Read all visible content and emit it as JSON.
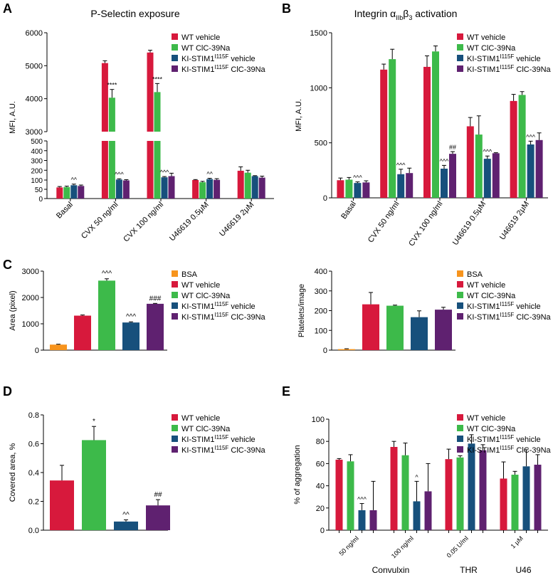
{
  "palette": {
    "bsa": "#f7941d",
    "wt_vehicle": "#d7193c",
    "wt_clc": "#3dba4a",
    "ki_vehicle": "#17507c",
    "ki_clc": "#5f2170"
  },
  "legend_labels": {
    "bsa": "BSA",
    "wt_vehicle": "WT vehicle",
    "wt_clc": "WT ClC-39Na",
    "ki_vehicle_pre": "KI-STIM1",
    "ki_vehicle_sup": "I115F",
    "ki_vehicle_post": " vehicle",
    "ki_clc_pre": "KI-STIM1",
    "ki_clc_sup": "I115F",
    "ki_clc_post": " ClC-39Na"
  },
  "panel_letters": {
    "a": "A",
    "b": "B",
    "c": "C",
    "d": "D",
    "e": "E"
  },
  "chart_data": [
    {
      "panel": "A",
      "type": "bar",
      "title": "P-Selectin exposure",
      "ylabel": "MFI, A.U.",
      "axis_break": true,
      "ylim_lower": [
        0,
        500
      ],
      "ylim_upper": [
        3000,
        6000
      ],
      "yticks_lower": [
        0,
        50,
        100,
        200,
        300,
        400,
        500
      ],
      "yticks_upper": [
        3000,
        4000,
        5000,
        6000
      ],
      "categories": [
        "Basal",
        "CVX 50 ng/ml",
        "CVX 100 ng/ml",
        "U46619 0.5μM",
        "U46619 2μM"
      ],
      "series": [
        {
          "name": "WT vehicle",
          "key": "wt_vehicle",
          "values": [
            60,
            5080,
            5400,
            100,
            195
          ],
          "errors": [
            5,
            70,
            70,
            5,
            40
          ]
        },
        {
          "name": "WT ClC-39Na",
          "key": "wt_clc",
          "values": [
            62,
            4030,
            4200,
            88,
            175
          ],
          "errors": [
            5,
            250,
            260,
            5,
            25
          ]
        },
        {
          "name": "KI-STIM1 I115F vehicle",
          "key": "ki_vehicle",
          "values": [
            72,
            105,
            128,
            110,
            140
          ],
          "errors": [
            6,
            8,
            8,
            8,
            5
          ]
        },
        {
          "name": "KI-STIM1 I115F ClC-39Na",
          "key": "ki_clc",
          "values": [
            68,
            98,
            140,
            102,
            125
          ],
          "errors": [
            5,
            6,
            30,
            12,
            15
          ]
        }
      ],
      "annotations": [
        {
          "category": 0,
          "series": 2,
          "text": "^^"
        },
        {
          "category": 1,
          "series": 1,
          "text": "****"
        },
        {
          "category": 1,
          "series": 2,
          "text": "^^^"
        },
        {
          "category": 2,
          "series": 1,
          "text": "****"
        },
        {
          "category": 2,
          "series": 2,
          "text": "^^^"
        },
        {
          "category": 3,
          "series": 2,
          "text": "^^"
        }
      ]
    },
    {
      "panel": "B",
      "type": "bar",
      "title_pre": "Integrin α",
      "title_sub1": "IIb",
      "title_mid": "β",
      "title_sub2": "3",
      "title_post": " activation",
      "ylabel": "MFI, A.U.",
      "ylim": [
        0,
        1500
      ],
      "yticks": [
        0,
        500,
        1000,
        1500
      ],
      "categories": [
        "Basal",
        "CVX 50 ng/ml",
        "CVX 100 ng/ml",
        "U46619 0.5μM",
        "U46619 2μM"
      ],
      "series": [
        {
          "name": "WT vehicle",
          "key": "wt_vehicle",
          "values": [
            160,
            1165,
            1190,
            650,
            880
          ],
          "errors": [
            20,
            50,
            100,
            80,
            60
          ]
        },
        {
          "name": "WT ClC-39Na",
          "key": "wt_clc",
          "values": [
            165,
            1260,
            1330,
            575,
            935
          ],
          "errors": [
            20,
            90,
            50,
            170,
            30
          ]
        },
        {
          "name": "KI-STIM1 I115F vehicle",
          "key": "ki_vehicle",
          "values": [
            135,
            215,
            265,
            355,
            485
          ],
          "errors": [
            10,
            45,
            30,
            25,
            30
          ]
        },
        {
          "name": "KI-STIM1 I115F ClC-39Na",
          "key": "ki_clc",
          "values": [
            140,
            225,
            400,
            405,
            525
          ],
          "errors": [
            15,
            45,
            20,
            5,
            65
          ]
        }
      ],
      "annotations": [
        {
          "category": 0,
          "series": 2,
          "text": "^^^"
        },
        {
          "category": 1,
          "series": 2,
          "text": "^^^"
        },
        {
          "category": 2,
          "series": 2,
          "text": "^^^"
        },
        {
          "category": 2,
          "series": 3,
          "text": "##"
        },
        {
          "category": 3,
          "series": 2,
          "text": "^^^"
        },
        {
          "category": 4,
          "series": 2,
          "text": "^^^"
        }
      ]
    },
    {
      "panel": "C-left",
      "type": "bar",
      "ylabel": "Area (pixel)",
      "ylim": [
        0,
        3000
      ],
      "yticks": [
        0,
        1000,
        2000,
        3000
      ],
      "categories": [
        "BSA",
        "WT vehicle",
        "WT ClC-39Na",
        "KI-STIM1 I115F vehicle",
        "KI-STIM1 I115F ClC-39Na"
      ],
      "keys": [
        "bsa",
        "wt_vehicle",
        "wt_clc",
        "ki_vehicle",
        "ki_clc"
      ],
      "values": [
        210,
        1310,
        2640,
        1050,
        1760
      ],
      "errors": [
        15,
        25,
        70,
        25,
        15
      ],
      "annotations": [
        {
          "index": 2,
          "text": "^^^"
        },
        {
          "index": 3,
          "text": "^^^"
        },
        {
          "index": 4,
          "text": "###"
        }
      ]
    },
    {
      "panel": "C-right",
      "type": "bar",
      "ylabel": "Platelets/image",
      "ylim": [
        0,
        400
      ],
      "yticks": [
        0,
        100,
        200,
        300,
        400
      ],
      "categories": [
        "BSA",
        "WT vehicle",
        "WT ClC-39Na",
        "KI-STIM1 I115F vehicle",
        "KI-STIM1 I115F ClC-39Na"
      ],
      "keys": [
        "bsa",
        "wt_vehicle",
        "wt_clc",
        "ki_vehicle",
        "ki_clc"
      ],
      "values": [
        5,
        232,
        225,
        167,
        205
      ],
      "errors": [
        2,
        60,
        3,
        32,
        12
      ],
      "annotations": []
    },
    {
      "panel": "D",
      "type": "bar",
      "ylabel": "Covered area, %",
      "ylim": [
        0,
        0.8
      ],
      "yticks": [
        "0.0",
        "0.2",
        "0.4",
        "0.6",
        "0.8"
      ],
      "categories": [
        "WT vehicle",
        "WT ClC-39Na",
        "KI-STIM1 I115F vehicle",
        "KI-STIM1 I115F ClC-39Na"
      ],
      "keys": [
        "wt_vehicle",
        "wt_clc",
        "ki_vehicle",
        "ki_clc"
      ],
      "values": [
        0.345,
        0.625,
        0.06,
        0.172
      ],
      "errors": [
        0.105,
        0.095,
        0.012,
        0.04
      ],
      "annotations": [
        {
          "index": 1,
          "text": "*"
        },
        {
          "index": 2,
          "text": "^^"
        },
        {
          "index": 3,
          "text": "##"
        }
      ]
    },
    {
      "panel": "E",
      "type": "bar",
      "ylabel": "% of aggregation",
      "ylim": [
        0,
        100
      ],
      "yticks": [
        0,
        20,
        40,
        60,
        80,
        100
      ],
      "categories": [
        "50 ng/ml",
        "100 ng/ml",
        "0.05 U/ml",
        "1 μM"
      ],
      "groups": [
        {
          "label": "Convulxin",
          "categories": [
            0,
            1
          ]
        },
        {
          "label": "THR",
          "categories": [
            2
          ]
        },
        {
          "label": "U46",
          "categories": [
            3
          ]
        }
      ],
      "series": [
        {
          "name": "WT vehicle",
          "key": "wt_vehicle",
          "values": [
            63.5,
            75,
            64,
            46.5
          ],
          "errors": [
            1,
            5,
            9,
            15
          ]
        },
        {
          "name": "WT ClC-39Na",
          "key": "wt_clc",
          "values": [
            62,
            67.5,
            65.5,
            50
          ],
          "errors": [
            6,
            11,
            1.5,
            3
          ]
        },
        {
          "name": "KI-STIM1 I115F vehicle",
          "key": "ki_vehicle",
          "values": [
            18,
            26,
            78,
            57.5
          ],
          "errors": [
            6,
            18,
            8,
            15
          ]
        },
        {
          "name": "KI-STIM1 I115F ClC-39Na",
          "key": "ki_clc",
          "values": [
            18,
            35,
            72,
            59
          ],
          "errors": [
            26,
            25,
            5,
            9
          ]
        }
      ],
      "annotations": [
        {
          "category": 0,
          "series": 2,
          "text": "^^^"
        },
        {
          "category": 1,
          "series": 2,
          "text": "^"
        }
      ]
    }
  ]
}
